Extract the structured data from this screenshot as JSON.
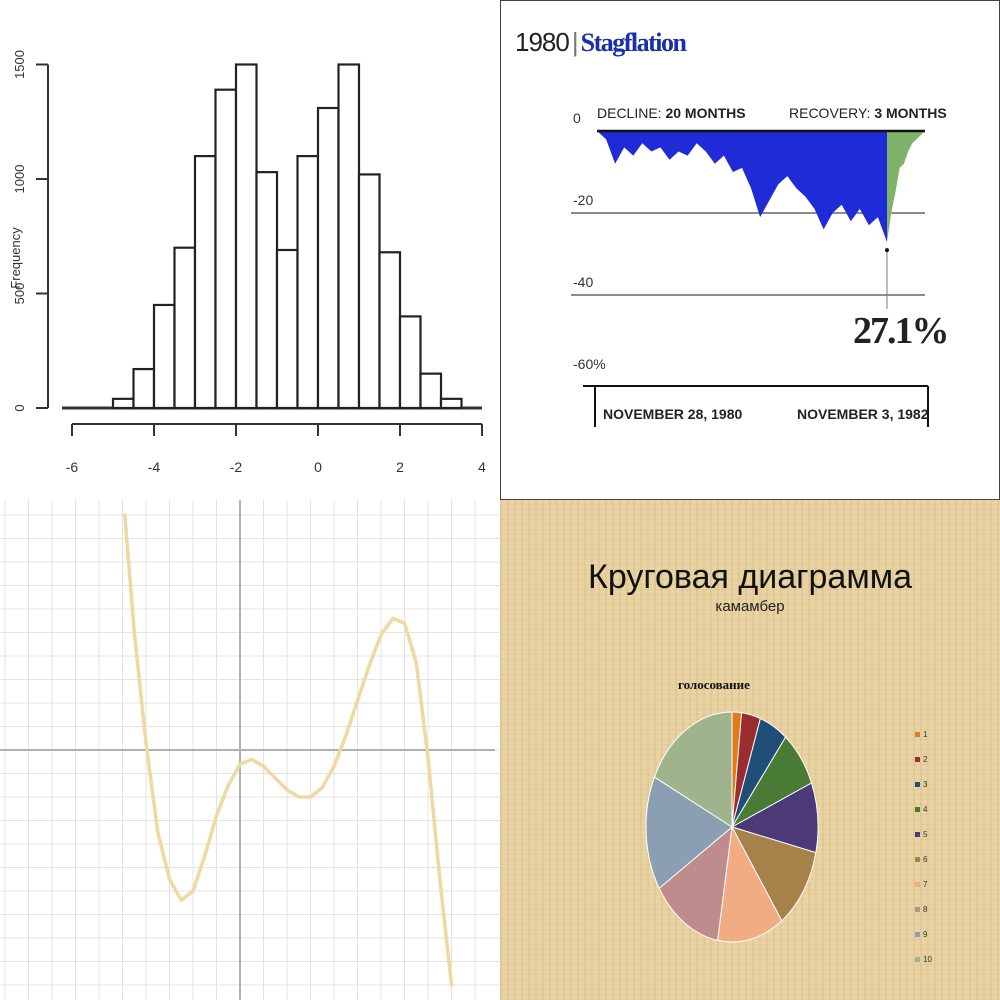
{
  "chart_data": [
    {
      "type": "bar",
      "subtype": "histogram",
      "ylabel": "Frequency",
      "x_ticks": [
        "-6",
        "-4",
        "-2",
        "0",
        "2",
        "4"
      ],
      "y_ticks": [
        "0",
        "500",
        "1000",
        "1500"
      ],
      "xlim": [
        -6,
        4
      ],
      "ylim": [
        0,
        1500
      ],
      "bin_width": 0.5,
      "bins_start": [
        -5,
        -4.5,
        -4,
        -3.5,
        -3,
        -2.5,
        -2,
        -1.5,
        -1,
        -0.5,
        0,
        0.5,
        1,
        1.5,
        2,
        2.5,
        3
      ],
      "values": [
        40,
        170,
        450,
        700,
        1100,
        1390,
        1500,
        1030,
        690,
        1100,
        1310,
        1500,
        1020,
        680,
        400,
        150,
        40
      ],
      "colors": {
        "bar_fill": "#ffffff",
        "bar_stroke": "#222222"
      }
    },
    {
      "type": "area",
      "title_year": "1980",
      "title": "Stagflation",
      "decline_label": "DECLINE:",
      "decline_value": "20 MONTHS",
      "recovery_label": "RECOVERY:",
      "recovery_value": "3 MONTHS",
      "y_ticks": [
        "0",
        "-20",
        "-40",
        "-60%"
      ],
      "ylim": [
        -60,
        0
      ],
      "trough_value": "27.1%",
      "start_date": "NOVEMBER 28, 1980",
      "end_date": "NOVEMBER 3, 1982",
      "decline_series": [
        0,
        -2,
        -8,
        -4,
        -6,
        -3,
        -5,
        -4,
        -7,
        -5,
        -6,
        -3,
        -5,
        -8,
        -6,
        -10,
        -9,
        -14,
        -21,
        -17,
        -13,
        -11,
        -14,
        -16,
        -19,
        -24,
        -20,
        -18,
        -22,
        -19,
        -23,
        -21,
        -27.1
      ],
      "recovery_series": [
        -27.1,
        -20,
        -15,
        -9,
        -8,
        -5,
        -3,
        -2,
        -1,
        0
      ],
      "colors": {
        "decline": "#1f2bd6",
        "recovery": "#7fb36a",
        "title": "#1a2fa8"
      }
    },
    {
      "type": "line",
      "xlim": [
        -10,
        10
      ],
      "ylim": [
        -10,
        10
      ],
      "x": [
        -4.9,
        -4.5,
        -4.0,
        -3.5,
        -3.0,
        -2.5,
        -2.0,
        -1.5,
        -1.0,
        -0.5,
        0.0,
        0.5,
        1.0,
        1.5,
        2.0,
        2.5,
        3.0,
        3.5,
        4.0,
        4.5,
        5.0,
        5.5,
        6.0,
        6.5,
        7.0,
        7.5,
        8.0,
        8.5,
        9.0
      ],
      "y": [
        10.0,
        5.0,
        0.3,
        -3.5,
        -5.5,
        -6.4,
        -6.0,
        -4.5,
        -2.8,
        -1.5,
        -0.6,
        -0.4,
        -0.7,
        -1.2,
        -1.7,
        -2.0,
        -2.0,
        -1.6,
        -0.7,
        0.6,
        2.1,
        3.6,
        4.9,
        5.6,
        5.4,
        3.7,
        -0.3,
        -5.5,
        -10.0
      ],
      "colors": {
        "curve": "#f0d9a0",
        "grid": "#e3e3e3",
        "axis": "#b0b0b0"
      }
    },
    {
      "type": "pie",
      "title": "Круговая диаграмма",
      "subtitle": "камамбер",
      "chart_title": "голосование",
      "labels": [
        "1",
        "2",
        "3",
        "4",
        "5",
        "6",
        "7",
        "8",
        "9",
        "10"
      ],
      "values": [
        2,
        4,
        6,
        9,
        11,
        13,
        14,
        15,
        18,
        20
      ],
      "colors": [
        "#e07b1a",
        "#9b2d30",
        "#1f4e79",
        "#4a7b34",
        "#4c3a78",
        "#a6824a",
        "#f2ac84",
        "#bf8c8e",
        "#8b9fb3",
        "#9fb38c"
      ]
    }
  ]
}
